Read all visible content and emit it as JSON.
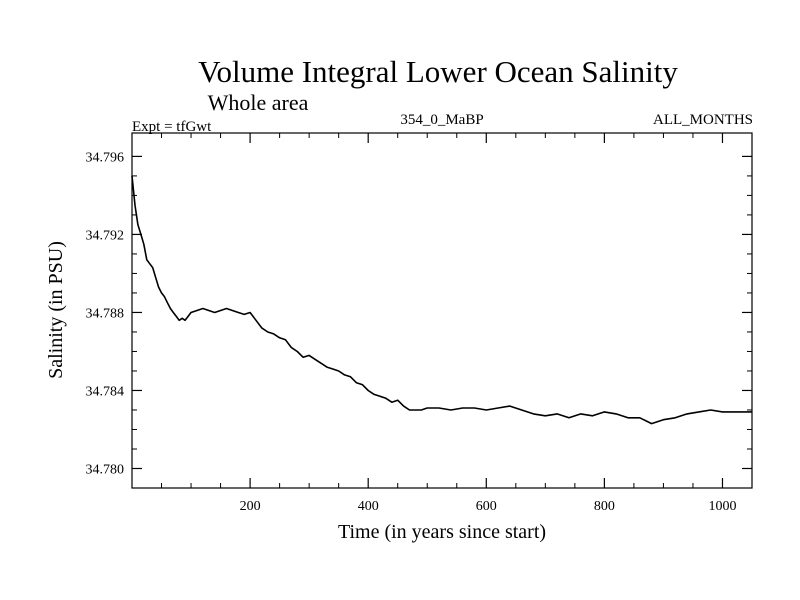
{
  "chart_data": {
    "type": "line",
    "title": "Volume Integral Lower Ocean Salinity",
    "subtitle": "Whole area",
    "left_label": "Expt = tfGwt",
    "center_label": "354_0_MaBP",
    "right_label": "ALL_MONTHS",
    "xlabel": "Time (in years since start)",
    "ylabel": "Salinity (in PSU)",
    "xlim": [
      0,
      1050
    ],
    "ylim": [
      34.779,
      34.7972
    ],
    "x_ticks_major": [
      200,
      400,
      600,
      800,
      1000
    ],
    "x_tick_labels": [
      "200",
      "400",
      "600",
      "800",
      "1000"
    ],
    "y_ticks_major": [
      34.78,
      34.784,
      34.788,
      34.792,
      34.796
    ],
    "y_tick_labels": [
      "34.780",
      "34.784",
      "34.788",
      "34.792",
      "34.796"
    ],
    "grid": false,
    "line_color": "#000000",
    "series": [
      {
        "name": "Salinity",
        "x": [
          0,
          5,
          10,
          15,
          20,
          25,
          30,
          35,
          40,
          45,
          50,
          55,
          60,
          65,
          70,
          75,
          80,
          85,
          90,
          95,
          100,
          110,
          120,
          130,
          140,
          150,
          160,
          170,
          180,
          190,
          200,
          210,
          220,
          230,
          240,
          250,
          260,
          270,
          280,
          290,
          300,
          310,
          320,
          330,
          340,
          350,
          360,
          370,
          380,
          390,
          400,
          410,
          420,
          430,
          440,
          450,
          460,
          470,
          480,
          490,
          500,
          520,
          540,
          560,
          580,
          600,
          620,
          640,
          660,
          680,
          700,
          720,
          740,
          760,
          780,
          800,
          820,
          840,
          860,
          880,
          900,
          920,
          940,
          960,
          980,
          1000,
          1020,
          1040,
          1050
        ],
        "values": [
          34.795,
          34.7935,
          34.7925,
          34.792,
          34.7915,
          34.7907,
          34.7905,
          34.7903,
          34.7898,
          34.7893,
          34.789,
          34.7888,
          34.7885,
          34.7882,
          34.788,
          34.7878,
          34.7876,
          34.7877,
          34.7876,
          34.7878,
          34.788,
          34.7881,
          34.7882,
          34.7881,
          34.788,
          34.7881,
          34.7882,
          34.7881,
          34.788,
          34.7879,
          34.788,
          34.7876,
          34.7872,
          34.787,
          34.7869,
          34.7867,
          34.7866,
          34.7862,
          34.786,
          34.7857,
          34.7858,
          34.7856,
          34.7854,
          34.7852,
          34.7851,
          34.785,
          34.7848,
          34.7847,
          34.7844,
          34.7843,
          34.784,
          34.7838,
          34.7837,
          34.7836,
          34.7834,
          34.7835,
          34.7832,
          34.783,
          34.783,
          34.783,
          34.7831,
          34.7831,
          34.783,
          34.7831,
          34.7831,
          34.783,
          34.7831,
          34.7832,
          34.783,
          34.7828,
          34.7827,
          34.7828,
          34.7826,
          34.7828,
          34.7827,
          34.7829,
          34.7828,
          34.7826,
          34.7826,
          34.7823,
          34.7825,
          34.7826,
          34.7828,
          34.7829,
          34.783,
          34.7829,
          34.7829,
          34.7829,
          34.7829
        ]
      }
    ]
  }
}
